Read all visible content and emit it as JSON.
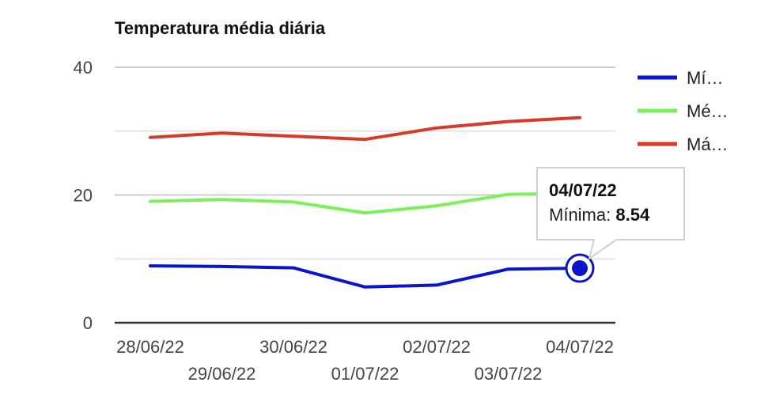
{
  "chart_data": {
    "type": "line",
    "title": "Temperatura média diária",
    "x": [
      "28/06/22",
      "29/06/22",
      "30/06/22",
      "01/07/22",
      "02/07/22",
      "03/07/22",
      "04/07/22"
    ],
    "y_ticks": [
      "0",
      "20",
      "40"
    ],
    "ylim": [
      0,
      40
    ],
    "grid": true,
    "legend_position": "right",
    "series": [
      {
        "name": "Mí…",
        "color": "#0a14c8",
        "values": [
          8.9,
          8.8,
          8.6,
          5.6,
          5.9,
          8.4,
          8.54
        ]
      },
      {
        "name": "Mé…",
        "color": "#7cf05a",
        "values": [
          19.0,
          19.3,
          18.9,
          17.2,
          18.3,
          20.1,
          20.3
        ]
      },
      {
        "name": "Má…",
        "color": "#d93a28",
        "values": [
          29.0,
          29.7,
          29.2,
          28.7,
          30.5,
          31.5,
          32.1
        ]
      }
    ],
    "tooltip": {
      "date": "04/07/22",
      "label": "Mínima:",
      "value": "8.54"
    }
  }
}
